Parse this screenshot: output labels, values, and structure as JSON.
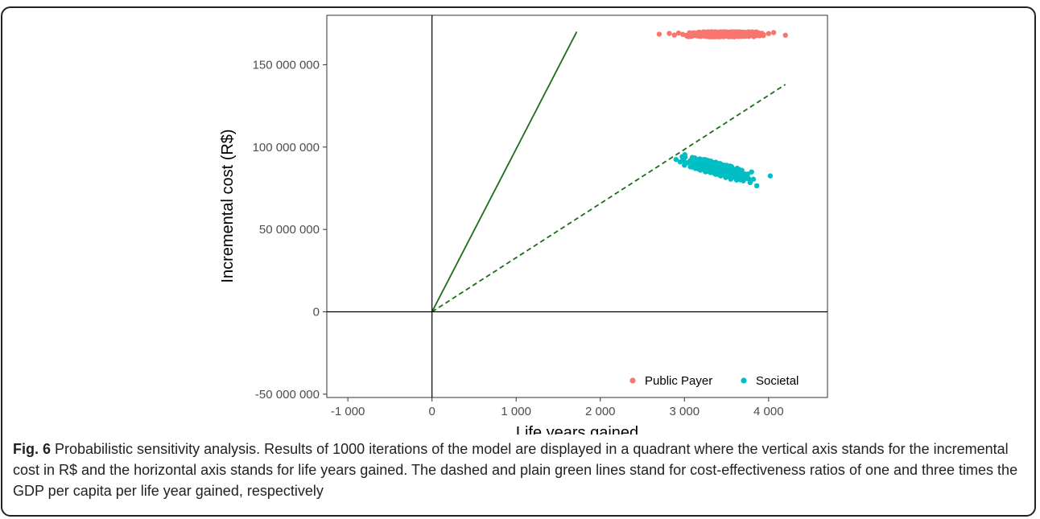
{
  "chart_data": {
    "type": "scatter",
    "xlabel": "Life years gained",
    "ylabel": "Incremental cost (R$)",
    "xlim": [
      -1250,
      4700
    ],
    "ylim": [
      -52000000,
      180000000
    ],
    "x_ticks": [
      -1000,
      0,
      1000,
      2000,
      3000,
      4000
    ],
    "x_tick_labels": [
      "-1 000",
      "0",
      "1 000",
      "2 000",
      "3 000",
      "4 000"
    ],
    "y_ticks": [
      -50000000,
      0,
      50000000,
      100000000,
      150000000
    ],
    "y_tick_labels": [
      "-50 000 000",
      "0",
      "50 000 000",
      "100 000 000",
      "150 000 000"
    ],
    "grid": false,
    "legend_position": "bottom-right",
    "series": [
      {
        "name": "Public Payer",
        "color": "#F8766D",
        "summary": {
          "x_range": [
            2700,
            4200
          ],
          "y_center": 168500000,
          "y_spread": 1500000
        },
        "points": [
          [
            2700,
            168500000
          ],
          [
            2820,
            169000000
          ],
          [
            2880,
            168000000
          ],
          [
            2930,
            169200000
          ],
          [
            2980,
            168400000
          ],
          [
            3020,
            167800000
          ],
          [
            3060,
            169400000
          ],
          [
            3100,
            168700000
          ],
          [
            3140,
            168100000
          ],
          [
            3180,
            169600000
          ],
          [
            3220,
            168300000
          ],
          [
            3260,
            169100000
          ],
          [
            3300,
            167900000
          ],
          [
            3340,
            168800000
          ],
          [
            3380,
            169500000
          ],
          [
            3420,
            168200000
          ],
          [
            3460,
            168900000
          ],
          [
            3500,
            167700000
          ],
          [
            3540,
            169300000
          ],
          [
            3580,
            168600000
          ],
          [
            3620,
            168000000
          ],
          [
            3660,
            169000000
          ],
          [
            3700,
            168400000
          ],
          [
            3740,
            169400000
          ],
          [
            3780,
            168100000
          ],
          [
            3820,
            168700000
          ],
          [
            3880,
            169200000
          ],
          [
            3940,
            168300000
          ],
          [
            4000,
            168900000
          ],
          [
            4060,
            169500000
          ],
          [
            4200,
            167900000
          ]
        ]
      },
      {
        "name": "Societal",
        "color": "#00BFC4",
        "summary": {
          "x_range": [
            2900,
            4020
          ],
          "y_range": [
            76000000,
            94000000
          ]
        },
        "points": [
          [
            2900,
            92500000
          ],
          [
            2950,
            91000000
          ],
          [
            2980,
            93500000
          ],
          [
            3000,
            89000000
          ],
          [
            3040,
            90500000
          ],
          [
            3070,
            88000000
          ],
          [
            3100,
            91500000
          ],
          [
            3130,
            87000000
          ],
          [
            3160,
            89500000
          ],
          [
            3190,
            86000000
          ],
          [
            3220,
            88500000
          ],
          [
            3250,
            85000000
          ],
          [
            3280,
            87500000
          ],
          [
            3310,
            84500000
          ],
          [
            3340,
            86500000
          ],
          [
            3370,
            83500000
          ],
          [
            3400,
            85500000
          ],
          [
            3430,
            82500000
          ],
          [
            3460,
            84500000
          ],
          [
            3490,
            81500000
          ],
          [
            3520,
            83500000
          ],
          [
            3550,
            80500000
          ],
          [
            3580,
            82500000
          ],
          [
            3620,
            80000000
          ],
          [
            3660,
            81500000
          ],
          [
            3700,
            79500000
          ],
          [
            3740,
            81000000
          ],
          [
            3780,
            78500000
          ],
          [
            3820,
            80500000
          ],
          [
            3860,
            76500000
          ],
          [
            4020,
            82500000
          ]
        ]
      }
    ],
    "reference_lines": [
      {
        "style": "solid",
        "color": "#1a6e1a",
        "from": [
          0,
          0
        ],
        "to": [
          1720,
          170000000
        ]
      },
      {
        "style": "dashed",
        "color": "#1a6e1a",
        "from": [
          0,
          0
        ],
        "to": [
          4200,
          138000000
        ]
      }
    ]
  },
  "caption": {
    "label": "Fig. 6",
    "text": " Probabilistic sensitivity analysis. Results of 1000 iterations of the model are displayed in a quadrant where the vertical axis stands for the incremental cost in R$ and the horizontal axis stands for life years gained. The dashed and plain green lines stand for cost-effectiveness ratios of one and three times the GDP per capita per life year gained, respectively"
  }
}
